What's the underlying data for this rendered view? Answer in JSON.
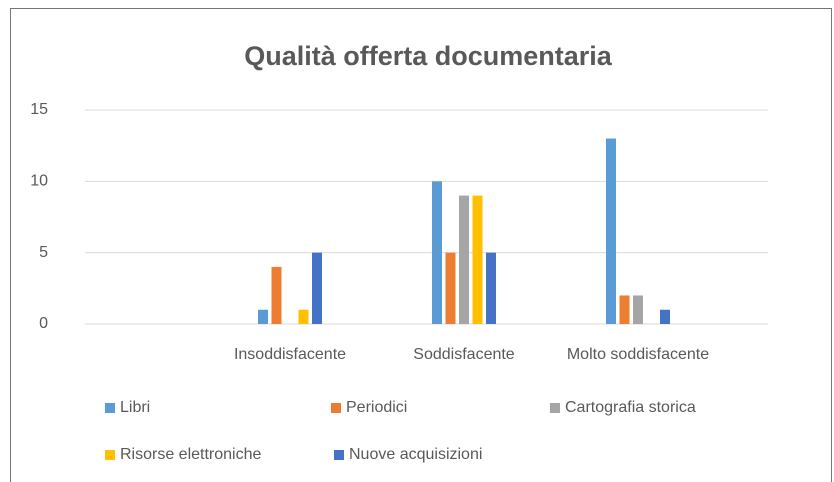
{
  "chart_data": {
    "type": "bar",
    "title": "Qualità offerta documentaria",
    "categories": [
      null,
      "Insoddisfacente",
      "Soddisfacente",
      "Molto soddisfacente"
    ],
    "series": [
      {
        "name": "Libri",
        "color": "#5b9bd5",
        "values": [
          null,
          1,
          10,
          13
        ]
      },
      {
        "name": "Periodici",
        "color": "#ed7d31",
        "values": [
          null,
          4,
          5,
          2
        ]
      },
      {
        "name": "Cartografia storica",
        "color": "#a5a5a5",
        "values": [
          null,
          0,
          9,
          2
        ]
      },
      {
        "name": "Risorse elettroniche",
        "color": "#ffc000",
        "values": [
          null,
          1,
          9,
          0
        ]
      },
      {
        "name": "Nuove acquisizioni",
        "color": "#4472c4",
        "values": [
          null,
          5,
          5,
          1
        ]
      }
    ],
    "ylim": [
      0,
      15
    ],
    "yticks": [
      0,
      5,
      10,
      15
    ],
    "grid": true,
    "legend": "bottom"
  }
}
